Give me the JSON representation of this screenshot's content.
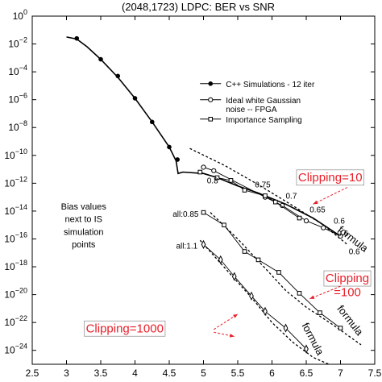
{
  "chart_data": {
    "type": "line",
    "title": "(2048,1723) LDPC: BER vs SNR",
    "xlabel": "",
    "ylabel": "",
    "xlim": [
      2.5,
      7.5
    ],
    "ylim": [
      -25,
      0
    ],
    "y_log_scale": true,
    "grid": false,
    "legend_placement": "top-right",
    "x_ticks": [
      2.5,
      3,
      3.5,
      4,
      4.5,
      5,
      5.5,
      6,
      6.5,
      7,
      7.5
    ],
    "x_tick_labels": [
      "2.5",
      "3",
      "3.5",
      "4",
      "4.5",
      "5",
      "5.5",
      "6",
      "6.5",
      "7",
      "7.5"
    ],
    "y_ticks": [
      0,
      -2,
      -4,
      -6,
      -8,
      -10,
      -12,
      -14,
      -16,
      -18,
      -20,
      -22,
      -24
    ],
    "y_tick_base": "10",
    "y_tick_exponents": [
      "0",
      "−2",
      "−4",
      "−6",
      "−8",
      "−10",
      "−12",
      "−14",
      "−16",
      "−18",
      "−20",
      "−22",
      "−24"
    ],
    "legend": [
      {
        "label": "C++ Simulations - 12 iter",
        "marker": "dot"
      },
      {
        "label": "Ideal white Gaussian",
        "label2": "noise -- FPGA",
        "marker": "circle"
      },
      {
        "label": "Importance Sampling",
        "marker": "square"
      }
    ],
    "series": [
      {
        "name": "C++ Simulations - 12 iter",
        "marker": "dot",
        "x": [
          3.15,
          3.5,
          3.75,
          4.0,
          4.25,
          4.5,
          4.62
        ],
        "y": [
          -1.6,
          -3.1,
          -4.3,
          -5.9,
          -7.6,
          -9.4,
          -10.3
        ]
      },
      {
        "name": "curve",
        "marker": "none",
        "x": [
          3.0,
          3.15,
          3.3,
          3.5,
          3.75,
          4.0,
          4.25,
          4.5,
          4.6,
          4.63,
          4.7,
          5.0,
          5.2,
          5.5,
          5.8,
          6.2,
          6.6,
          7.0
        ],
        "y": [
          -1.5,
          -1.65,
          -2.2,
          -3.1,
          -4.4,
          -5.9,
          -7.6,
          -9.4,
          -10.4,
          -11.3,
          -11.2,
          -11.3,
          -11.6,
          -12.2,
          -12.7,
          -13.5,
          -14.5,
          -15.8
        ]
      },
      {
        "name": "Ideal white Gaussian noise -- FPGA",
        "marker": "circle",
        "x": [
          5.0,
          5.15,
          5.9,
          6.15,
          6.5,
          6.75,
          7.0
        ],
        "y": [
          -10.85,
          -11.1,
          -13.0,
          -13.6,
          -14.7,
          -15.2,
          -15.8
        ]
      },
      {
        "name": "Importance Sampling",
        "marker": "square",
        "x": [
          4.95,
          5.2,
          5.4,
          5.6,
          5.9,
          6.05,
          6.4
        ],
        "y": [
          -11.2,
          -11.6,
          -11.8,
          -12.5,
          -12.9,
          -13.35,
          -14.5
        ]
      },
      {
        "name": "Clipping=100",
        "marker": "square",
        "x": [
          5.0,
          5.3,
          5.6,
          5.8,
          6.1,
          6.4,
          6.7,
          7.0
        ],
        "y": [
          -14.1,
          -15.0,
          -16.9,
          -17.5,
          -18.4,
          -19.9,
          -21.3,
          -22.4
        ]
      },
      {
        "name": "Clipping=1000",
        "marker": "diamond",
        "x": [
          5.0,
          5.25,
          5.45,
          5.7,
          5.9,
          6.2,
          6.5
        ],
        "y": [
          -16.4,
          -17.5,
          -18.7,
          -20.1,
          -21.2,
          -22.4,
          -23.9
        ]
      }
    ],
    "formula_lines": [
      {
        "x": [
          4.8,
          5.3,
          5.8,
          6.3,
          6.75,
          7.1
        ],
        "y": [
          -9.5,
          -10.7,
          -12.1,
          -13.6,
          -15.0,
          -16.4
        ]
      },
      {
        "x": [
          5.1,
          5.5,
          5.9,
          6.2,
          6.5,
          6.9,
          7.3
        ],
        "y": [
          -14.1,
          -16.0,
          -18.1,
          -19.7,
          -20.9,
          -22.2,
          -23.6
        ]
      },
      {
        "x": [
          4.95,
          5.35,
          5.7,
          6.0,
          6.3,
          6.6,
          6.83
        ],
        "y": [
          -16.1,
          -18.3,
          -20.2,
          -22.0,
          -23.4,
          -24.5,
          -25.0
        ]
      }
    ],
    "bias_labels": [
      {
        "text": "0.8",
        "x": 5.05,
        "y": -12.0
      },
      {
        "text": "0.75",
        "x": 5.75,
        "y": -12.3
      },
      {
        "text": "0.7",
        "x": 6.2,
        "y": -13.1
      },
      {
        "text": "0.65",
        "x": 6.55,
        "y": -14.1
      },
      {
        "text": "0.6",
        "x": 6.9,
        "y": -14.9
      },
      {
        "text": "0.6",
        "x": 6.95,
        "y": -15.8
      },
      {
        "text": "0.6",
        "x": 7.12,
        "y": -17.1
      },
      {
        "text": "all:0.85",
        "x": 4.55,
        "y": -14.4
      },
      {
        "text": "all:1.1",
        "x": 4.6,
        "y": -16.7
      }
    ],
    "annotations": [
      {
        "text": "Clipping=10",
        "x": 6.85,
        "y": -11.85,
        "color": "#e8202a",
        "bordered": true,
        "size": 15
      },
      {
        "text": "Clipping",
        "x": 7.1,
        "y": -19.1,
        "color": "#e8202a",
        "bordered": true,
        "size": 15
      },
      {
        "text": "=100",
        "x": 7.1,
        "y": -20.1,
        "color": "#e8202a",
        "bordered": false,
        "size": 15
      },
      {
        "text": "Clipping=1000",
        "x": 3.85,
        "y": -22.7,
        "color": "#e8202a",
        "bordered": true,
        "size": 15
      },
      {
        "text": "Bias values",
        "x": 3.25,
        "y": -13.9,
        "color": "#000000",
        "bordered": false,
        "size": 11
      },
      {
        "text": "next to IS",
        "x": 3.25,
        "y": -14.8,
        "color": "#000000",
        "bordered": false,
        "size": 11
      },
      {
        "text": "simulation",
        "x": 3.25,
        "y": -15.7,
        "color": "#000000",
        "bordered": false,
        "size": 11
      },
      {
        "text": "points",
        "x": 3.25,
        "y": -16.6,
        "color": "#000000",
        "bordered": false,
        "size": 11
      }
    ],
    "formula_labels": [
      {
        "text": "formula",
        "x": 7.15,
        "y": -16.2,
        "angle": 38
      },
      {
        "text": "formula",
        "x": 7.1,
        "y": -22.0,
        "angle": 52
      },
      {
        "text": "formula",
        "x": 6.55,
        "y": -23.3,
        "angle": 62
      }
    ],
    "arrows": [
      {
        "from": [
          7.1,
          -12.3
        ],
        "to": [
          6.6,
          -13.5
        ]
      },
      {
        "from": [
          7.0,
          -19.4
        ],
        "to": [
          6.55,
          -20.3
        ]
      },
      {
        "from": [
          5.15,
          -22.5
        ],
        "to": [
          5.5,
          -21.4
        ]
      },
      {
        "from": [
          5.15,
          -22.7
        ],
        "to": [
          5.45,
          -23.0
        ]
      }
    ],
    "colors": {
      "line": "#000000",
      "annotation": "#e8202a"
    }
  }
}
